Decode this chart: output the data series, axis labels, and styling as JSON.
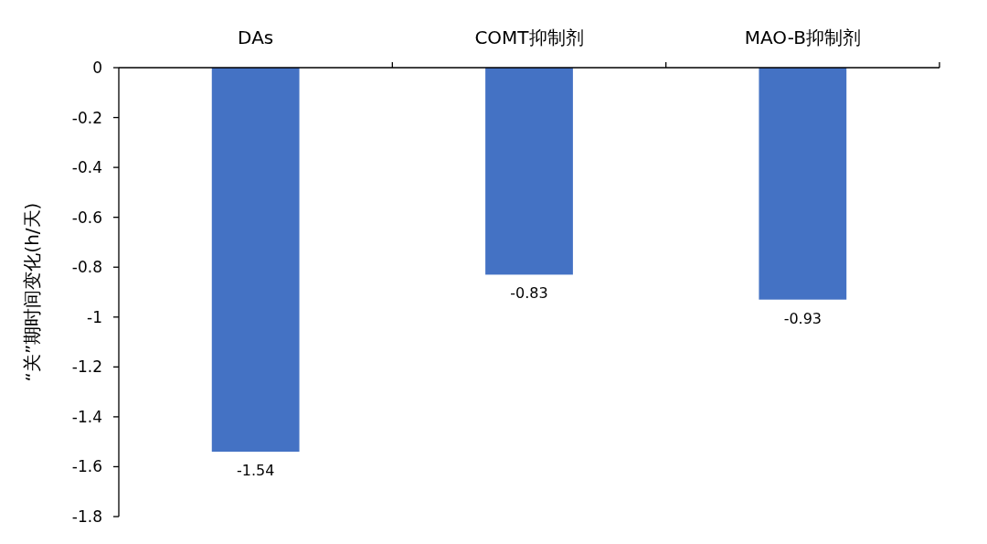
{
  "chart_data": {
    "type": "bar",
    "ylabel": "“关”期时间变化(h/天)",
    "categories": [
      "DAs",
      "COMT抑制剂",
      "MAO-B抑制剂"
    ],
    "values": [
      -1.54,
      -0.83,
      -0.93
    ],
    "color": "#4472c4",
    "ylim": [
      -1.8,
      0
    ],
    "yticks": [
      0,
      -0.2,
      -0.4,
      -0.6,
      -0.8,
      -1,
      -1.2,
      -1.4,
      -1.6,
      -1.8
    ],
    "data_labels": true
  }
}
